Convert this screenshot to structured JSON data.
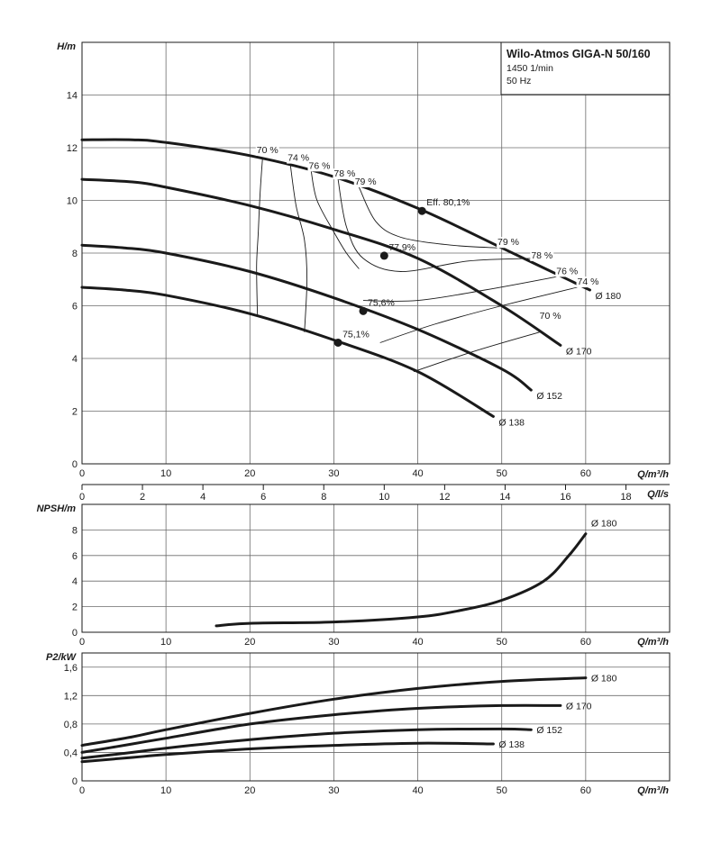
{
  "title_box": {
    "title": "Wilo-Atmos GIGA-N 50/160",
    "speed": "1450 1/min",
    "frequency": "50 Hz"
  },
  "chart_data": [
    {
      "type": "line",
      "name": "head",
      "xlabel": "Q/m³/h",
      "ylabel": "H/m",
      "xlim": [
        0,
        70
      ],
      "ylim": [
        0,
        16
      ],
      "xticks": [
        0,
        10,
        20,
        30,
        40,
        50,
        60
      ],
      "yticks": [
        0,
        2,
        4,
        6,
        8,
        10,
        12,
        14
      ],
      "grid": true,
      "secondary_axis": {
        "label": "Q/l/s",
        "ticks": [
          0,
          2,
          4,
          6,
          8,
          10,
          12,
          14,
          16,
          18
        ]
      },
      "series": [
        {
          "name": "Ø 180",
          "x": [
            0,
            6,
            10,
            20,
            30,
            40,
            50,
            60.5
          ],
          "y": [
            12.3,
            12.3,
            12.2,
            11.7,
            10.9,
            9.7,
            8.2,
            6.6
          ]
        },
        {
          "name": "Ø 170",
          "x": [
            0,
            6,
            10,
            20,
            30,
            40,
            50,
            57
          ],
          "y": [
            10.8,
            10.7,
            10.5,
            9.8,
            8.9,
            7.8,
            6.0,
            4.5
          ]
        },
        {
          "name": "Ø 152",
          "x": [
            0,
            5,
            10,
            20,
            30,
            40,
            50,
            53.5
          ],
          "y": [
            8.3,
            8.2,
            8.0,
            7.3,
            6.3,
            5.1,
            3.6,
            2.8
          ]
        },
        {
          "name": "Ø 138",
          "x": [
            0,
            5,
            10,
            20,
            30,
            40,
            49
          ],
          "y": [
            6.7,
            6.6,
            6.4,
            5.7,
            4.7,
            3.5,
            1.8
          ]
        }
      ],
      "bep_points": [
        {
          "x": 40.5,
          "y": 9.6,
          "label": "Eff. 80,1%"
        },
        {
          "x": 36,
          "y": 7.9,
          "label": "77,9%"
        },
        {
          "x": 33.5,
          "y": 5.8,
          "label": "75,6%"
        },
        {
          "x": 30.5,
          "y": 4.6,
          "label": "75,1%"
        }
      ],
      "efficiency_labels": [
        {
          "text": "70 %",
          "x": 20.8,
          "y": 11.8
        },
        {
          "text": "74 %",
          "x": 24.5,
          "y": 11.5
        },
        {
          "text": "76 %",
          "x": 27,
          "y": 11.2
        },
        {
          "text": "78 %",
          "x": 30,
          "y": 10.9
        },
        {
          "text": "79 %",
          "x": 32.5,
          "y": 10.6
        },
        {
          "text": "79 %",
          "x": 49.5,
          "y": 8.3
        },
        {
          "text": "78 %",
          "x": 53.5,
          "y": 7.8
        },
        {
          "text": "76 %",
          "x": 56.5,
          "y": 7.2
        },
        {
          "text": "74 %",
          "x": 59,
          "y": 6.8
        },
        {
          "text": "70 %",
          "x": 54.5,
          "y": 5.5
        }
      ],
      "efficiency_curves": [
        {
          "name": "70% left",
          "points": [
            [
              21.5,
              11.6
            ],
            [
              21.2,
              10.2
            ],
            [
              21.0,
              8.8
            ],
            [
              20.8,
              7.5
            ],
            [
              20.9,
              5.6
            ]
          ]
        },
        {
          "name": "74% left",
          "points": [
            [
              24.8,
              11.4
            ],
            [
              25.5,
              9.8
            ],
            [
              26.5,
              8.5
            ],
            [
              26.8,
              7.0
            ],
            [
              26.5,
              5.0
            ]
          ]
        },
        {
          "name": "76% left",
          "points": [
            [
              27.3,
              11.1
            ],
            [
              28.0,
              10.0
            ],
            [
              30.0,
              8.8
            ],
            [
              31.5,
              8.0
            ],
            [
              33.0,
              7.4
            ]
          ]
        },
        {
          "name": "78% loop",
          "points": [
            [
              30.5,
              10.8
            ],
            [
              31.5,
              9.0
            ],
            [
              33.5,
              7.8
            ],
            [
              38.0,
              7.3
            ],
            [
              46.0,
              7.7
            ],
            [
              53.5,
              7.8
            ]
          ]
        },
        {
          "name": "79% loop",
          "points": [
            [
              33.0,
              10.5
            ],
            [
              35.0,
              9.2
            ],
            [
              38.0,
              8.6
            ],
            [
              44.0,
              8.3
            ],
            [
              49.5,
              8.2
            ]
          ]
        },
        {
          "name": "76% right",
          "points": [
            [
              33.5,
              6.2
            ],
            [
              40.0,
              6.2
            ],
            [
              48.0,
              6.6
            ],
            [
              56.5,
              7.1
            ]
          ]
        },
        {
          "name": "74% right",
          "points": [
            [
              35.5,
              4.6
            ],
            [
              42.0,
              5.3
            ],
            [
              50.0,
              6.0
            ],
            [
              59.0,
              6.7
            ]
          ]
        },
        {
          "name": "70% right",
          "points": [
            [
              39.5,
              3.5
            ],
            [
              47.0,
              4.3
            ],
            [
              54.5,
              5.0
            ]
          ]
        }
      ]
    },
    {
      "type": "line",
      "name": "npsh",
      "xlabel": "Q/m³/h",
      "ylabel": "NPSH/m",
      "xlim": [
        0,
        70
      ],
      "ylim": [
        0,
        10
      ],
      "xticks": [
        0,
        10,
        20,
        30,
        40,
        50,
        60
      ],
      "yticks": [
        0,
        2,
        4,
        6,
        8
      ],
      "grid": true,
      "series": [
        {
          "name": "Ø 180",
          "x": [
            16,
            20,
            30,
            40,
            45,
            50,
            55,
            58,
            60
          ],
          "y": [
            0.5,
            0.7,
            0.8,
            1.2,
            1.7,
            2.5,
            4.0,
            6.0,
            7.7
          ]
        }
      ]
    },
    {
      "type": "line",
      "name": "power",
      "xlabel": "Q/m³/h",
      "ylabel": "P2/kW",
      "xlim": [
        0,
        70
      ],
      "ylim": [
        0,
        1.8
      ],
      "xticks": [
        0,
        10,
        20,
        30,
        40,
        50,
        60
      ],
      "yticks": [
        0,
        0.4,
        0.8,
        1.2,
        1.6
      ],
      "ytick_labels": [
        "0",
        "0,4",
        "0,8",
        "1,2",
        "1,6"
      ],
      "grid": true,
      "series": [
        {
          "name": "Ø 180",
          "x": [
            0,
            6,
            10,
            20,
            30,
            40,
            50,
            60
          ],
          "y": [
            0.5,
            0.62,
            0.72,
            0.95,
            1.15,
            1.3,
            1.4,
            1.45
          ]
        },
        {
          "name": "Ø 170",
          "x": [
            0,
            6,
            10,
            20,
            30,
            40,
            50,
            57
          ],
          "y": [
            0.4,
            0.52,
            0.6,
            0.8,
            0.93,
            1.02,
            1.06,
            1.06
          ]
        },
        {
          "name": "Ø 152",
          "x": [
            0,
            6,
            10,
            20,
            30,
            40,
            50,
            53.5
          ],
          "y": [
            0.32,
            0.4,
            0.46,
            0.58,
            0.67,
            0.72,
            0.73,
            0.72
          ]
        },
        {
          "name": "Ø 138",
          "x": [
            0,
            6,
            10,
            20,
            30,
            40,
            49
          ],
          "y": [
            0.27,
            0.33,
            0.37,
            0.45,
            0.5,
            0.53,
            0.52
          ]
        }
      ]
    }
  ]
}
